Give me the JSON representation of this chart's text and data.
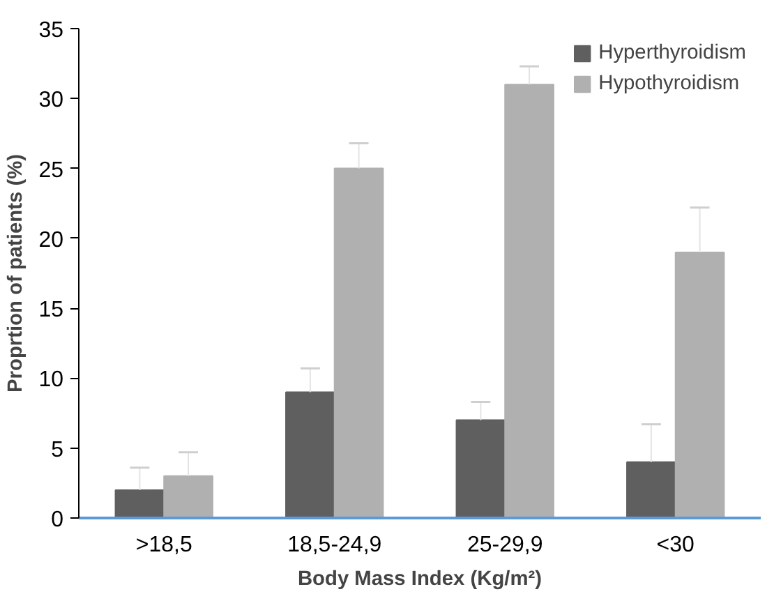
{
  "chart_data": {
    "type": "bar",
    "xlabel": "Body Mass Index (Kg/m²)",
    "ylabel": "Proprtion of patients (%)",
    "categories": [
      ">18,5",
      "18,5-24,9",
      "25-29,9",
      "<30"
    ],
    "series": [
      {
        "name": "Hyperthyroidism",
        "color": "#5f5f5f",
        "values": [
          2,
          9,
          7,
          4
        ],
        "errors": [
          [
            2,
            3.6
          ],
          [
            9,
            10.7
          ],
          [
            7,
            8.3
          ],
          [
            4,
            6.7
          ]
        ]
      },
      {
        "name": "Hypothyroidism",
        "color": "#b0b0b0",
        "values": [
          3,
          25,
          31,
          19
        ],
        "errors": [
          [
            3,
            4.7
          ],
          [
            25,
            26.8
          ],
          [
            31,
            32.3
          ],
          [
            19,
            22.2
          ]
        ]
      }
    ],
    "ylim": [
      0,
      35
    ],
    "yticks": [
      0,
      5,
      10,
      15,
      20,
      25,
      30,
      35
    ],
    "grid": false,
    "legend": "top right"
  }
}
